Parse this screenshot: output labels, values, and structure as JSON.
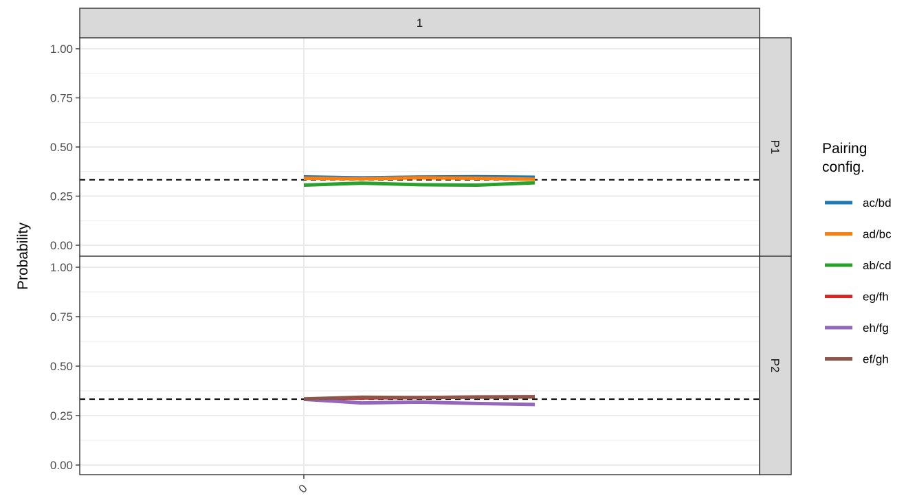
{
  "chart_data": {
    "type": "line",
    "column_facets": [
      "1"
    ],
    "row_facets": [
      "P1",
      "P2"
    ],
    "ylabel": "Probability",
    "xlabel": "",
    "x_ticks": [
      "0"
    ],
    "y_ticks": [
      "0.00",
      "0.25",
      "0.50",
      "0.75",
      "1.00"
    ],
    "ylim": [
      0,
      1
    ],
    "reference_line": {
      "y": 0.333,
      "style": "dashed",
      "color": "#000000"
    },
    "grid": true,
    "legend": {
      "title_lines": [
        "Pairing",
        "config."
      ],
      "placement": "right",
      "entries": [
        {
          "name": "ac/bd",
          "color": "#1f77b4"
        },
        {
          "name": "ad/bc",
          "color": "#ff7f0e"
        },
        {
          "name": "ab/cd",
          "color": "#2ca02c"
        },
        {
          "name": "eg/fh",
          "color": "#d62728"
        },
        {
          "name": "eh/fg",
          "color": "#9467bd"
        },
        {
          "name": "ef/gh",
          "color": "#8c564b"
        }
      ]
    },
    "panels": [
      {
        "row": "P1",
        "series": [
          {
            "name": "ac/bd",
            "color": "#1f77b4",
            "x": [
              0,
              0.25,
              0.5,
              0.75,
              1.0
            ],
            "values": [
              0.348,
              0.343,
              0.347,
              0.349,
              0.346
            ]
          },
          {
            "name": "ad/bc",
            "color": "#ff7f0e",
            "x": [
              0,
              0.25,
              0.5,
              0.75,
              1.0
            ],
            "values": [
              0.341,
              0.338,
              0.343,
              0.341,
              0.336
            ]
          },
          {
            "name": "ab/cd",
            "color": "#2ca02c",
            "x": [
              0,
              0.25,
              0.5,
              0.75,
              1.0
            ],
            "values": [
              0.306,
              0.316,
              0.308,
              0.306,
              0.318
            ]
          }
        ]
      },
      {
        "row": "P2",
        "series": [
          {
            "name": "eg/fh",
            "color": "#d62728",
            "x": [
              0,
              0.25,
              0.5,
              0.75,
              1.0
            ],
            "values": [
              0.333,
              0.339,
              0.341,
              0.344,
              0.345
            ]
          },
          {
            "name": "eh/fg",
            "color": "#9467bd",
            "x": [
              0,
              0.25,
              0.5,
              0.75,
              1.0
            ],
            "values": [
              0.332,
              0.314,
              0.318,
              0.311,
              0.306
            ]
          },
          {
            "name": "ef/gh",
            "color": "#8c564b",
            "x": [
              0,
              0.25,
              0.5,
              0.75,
              1.0
            ],
            "values": [
              0.334,
              0.343,
              0.341,
              0.343,
              0.344
            ]
          }
        ]
      }
    ]
  }
}
